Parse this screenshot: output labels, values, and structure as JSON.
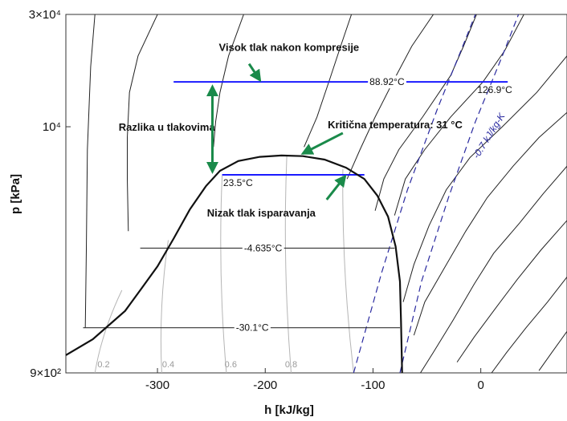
{
  "chart_data": {
    "type": "line",
    "title": "",
    "xlabel": "h [kJ/kg]",
    "ylabel": "p [kPa]",
    "xlim": [
      -385,
      80
    ],
    "ylim": [
      900,
      30000
    ],
    "yscale": "log",
    "grid": false,
    "x_ticks": [
      {
        "value": -300,
        "label": "-300"
      },
      {
        "value": -200,
        "label": "-200"
      },
      {
        "value": -100,
        "label": "-100"
      },
      {
        "value": 0,
        "label": "0"
      }
    ],
    "y_ticks": [
      {
        "value": 900,
        "label": "9×10²"
      },
      {
        "value": 10000,
        "label": "10⁴"
      },
      {
        "value": 30000,
        "label": "3×10⁴"
      }
    ],
    "saturation_dome": {
      "color": "#111111",
      "points": [
        [
          -385,
          1070
        ],
        [
          -360,
          1250
        ],
        [
          -330,
          1650
        ],
        [
          -315,
          2050
        ],
        [
          -300,
          2550
        ],
        [
          -285,
          3350
        ],
        [
          -270,
          4450
        ],
        [
          -255,
          5600
        ],
        [
          -242,
          6500
        ],
        [
          -225,
          7150
        ],
        [
          -205,
          7450
        ],
        [
          -185,
          7550
        ],
        [
          -165,
          7500
        ],
        [
          -145,
          7250
        ],
        [
          -125,
          6700
        ],
        [
          -108,
          6000
        ],
        [
          -96,
          5100
        ],
        [
          -86,
          4150
        ],
        [
          -79,
          3100
        ],
        [
          -75,
          2200
        ],
        [
          -74,
          1500
        ],
        [
          -73,
          900
        ]
      ]
    },
    "quality_labels": [
      {
        "x": -350,
        "text": "0.2"
      },
      {
        "x": -290,
        "text": "0.4"
      },
      {
        "x": -232,
        "text": "0.6"
      },
      {
        "x": -176,
        "text": "0.8"
      }
    ],
    "quality_lines": [
      {
        "top": [
          -333,
          2020
        ],
        "bottom": [
          -358,
          900
        ]
      },
      {
        "top": [
          -290,
          3300
        ],
        "bottom": [
          -296,
          900
        ]
      },
      {
        "top": [
          -240,
          6200
        ],
        "bottom": [
          -236,
          900
        ]
      },
      {
        "top": [
          -180,
          7500
        ],
        "bottom": [
          -176,
          900
        ]
      },
      {
        "top": [
          -128,
          6600
        ],
        "bottom": [
          -118,
          900
        ]
      }
    ],
    "isotherms": [
      {
        "label": "-30.1°C",
        "p": 1400,
        "h_from": -369,
        "h_to": -75
      },
      {
        "label": "-4.635°C",
        "p": 3050,
        "h_from": -316,
        "h_to": -80
      },
      {
        "label": "23.5°C",
        "p": 6250,
        "h_from": -240,
        "h_to": -108,
        "color": "#1a1aff"
      },
      {
        "label": "88.92°C",
        "p": 15500,
        "h_from": -285,
        "h_to": 25,
        "color": "#1a1aff"
      },
      {
        "label": "126.9°C",
        "p": 15500,
        "h_from": 25,
        "h_to": 25,
        "hidden": true
      }
    ],
    "isentropes": [
      {
        "label": "-0.7 kJ/kg-K",
        "points": [
          [
            -75,
            900
          ],
          [
            -55,
            2200
          ],
          [
            -30,
            5000
          ],
          [
            -5,
            10500
          ],
          [
            20,
            20000
          ],
          [
            35,
            30000
          ]
        ]
      },
      {
        "points": [
          [
            -118,
            900
          ],
          [
            -92,
            2400
          ],
          [
            -68,
            5400
          ],
          [
            -40,
            12000
          ],
          [
            -15,
            23000
          ],
          [
            -5,
            30000
          ]
        ]
      }
    ],
    "annotations": [
      {
        "text": "Visok tlak nakon kompresije",
        "x": -243,
        "y": 21000
      },
      {
        "text": "Kritična temperatura: 31 °C",
        "x": -142,
        "y": 9850
      },
      {
        "text": "Razlika u tlakovima",
        "x": -336,
        "y": 9600
      },
      {
        "text": "Nizak tlak isparavanja",
        "x": -254,
        "y": 4150
      }
    ]
  }
}
